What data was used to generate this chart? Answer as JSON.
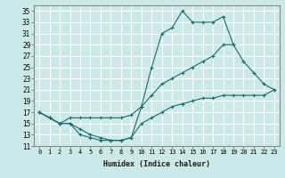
{
  "xlabel": "Humidex (Indice chaleur)",
  "bg_color": "#cce9e9",
  "grid_color": "#ffffff",
  "line_color": "#1a6b6b",
  "xlim": [
    -0.5,
    23.5
  ],
  "ylim": [
    11,
    36
  ],
  "yticks": [
    11,
    13,
    15,
    17,
    19,
    21,
    23,
    25,
    27,
    29,
    31,
    33,
    35
  ],
  "xticks": [
    0,
    1,
    2,
    3,
    4,
    5,
    6,
    7,
    8,
    9,
    10,
    11,
    12,
    13,
    14,
    15,
    16,
    17,
    18,
    19,
    20,
    21,
    22,
    23
  ],
  "line1_x": [
    0,
    1,
    2,
    3,
    4,
    5,
    6,
    7,
    8,
    9,
    10,
    11,
    12,
    13,
    14,
    15,
    16,
    17,
    18,
    19
  ],
  "line1_y": [
    17,
    16,
    15,
    15,
    13,
    12.5,
    12,
    12,
    12,
    12.5,
    18,
    25,
    31,
    32,
    35,
    33,
    33,
    33,
    34,
    29
  ],
  "line2_x": [
    0,
    1,
    2,
    3,
    4,
    5,
    6,
    7,
    8,
    9,
    10,
    11,
    12,
    13,
    14,
    15,
    16,
    17,
    18,
    19,
    20,
    21,
    22,
    23
  ],
  "line2_y": [
    17,
    16,
    15,
    16,
    16,
    16,
    16,
    16,
    16,
    16.5,
    18,
    20,
    22,
    23,
    24,
    25,
    26,
    27,
    29,
    29,
    26,
    24,
    22,
    21
  ],
  "line3_x": [
    0,
    1,
    2,
    3,
    4,
    5,
    6,
    7,
    8,
    9,
    10,
    11,
    12,
    13,
    14,
    15,
    16,
    17,
    18,
    19,
    20,
    21,
    22,
    23
  ],
  "line3_y": [
    17,
    16,
    15,
    15,
    14,
    13,
    12.5,
    12,
    12,
    12.5,
    15,
    16,
    17,
    18,
    18.5,
    19,
    19.5,
    19.5,
    20,
    20,
    20,
    20,
    20,
    21
  ]
}
